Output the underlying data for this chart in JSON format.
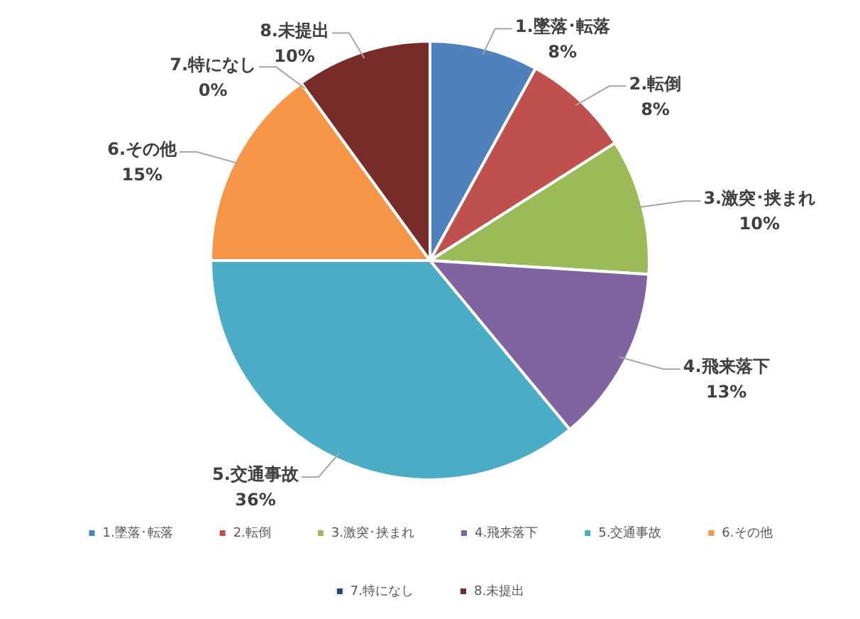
{
  "chart_data": {
    "type": "pie",
    "categories": [
      "1.墜落･転落",
      "2.転倒",
      "3.激突･挟まれ",
      "4.飛来落下",
      "5.交通事故",
      "6.その他",
      "7.特になし",
      "8.未提出"
    ],
    "values": [
      8,
      8,
      10,
      13,
      36,
      15,
      0,
      10
    ],
    "colors": [
      "#4f81bd",
      "#c0504d",
      "#9bbb59",
      "#8064a2",
      "#4bacc6",
      "#f79646",
      "#1f497d",
      "#772c2a"
    ],
    "value_labels": [
      "8%",
      "8%",
      "10%",
      "13%",
      "36%",
      "15%",
      "0%",
      "10%"
    ],
    "legend": "bottom"
  }
}
